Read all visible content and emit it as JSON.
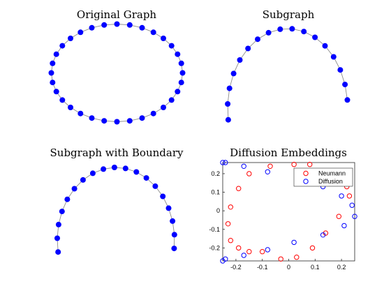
{
  "chart_data": [
    {
      "type": "graph",
      "title": "Original Graph",
      "node_count": 32,
      "closed": true,
      "node_color": "#0000ff",
      "edge_color": "#8c8c8c"
    },
    {
      "type": "graph",
      "title": "Subgraph",
      "node_count": 17,
      "closed": false,
      "node_color": "#0000ff",
      "edge_color": "#8c8c8c"
    },
    {
      "type": "graph",
      "title": "Subgraph with Boundary",
      "node_count": 19,
      "closed": false,
      "node_color": "#0000ff",
      "edge_color": "#8c8c8c"
    },
    {
      "type": "scatter",
      "title": "Diffusion Embeddings",
      "xlim": [
        -0.25,
        0.25
      ],
      "ylim": [
        -0.27,
        0.26
      ],
      "xticks": [
        -0.2,
        -0.1,
        0,
        0.1,
        0.2
      ],
      "xtick_labels": [
        "-0.2",
        "-0.1",
        "0",
        "0.1",
        "0.2"
      ],
      "yticks": [
        -0.2,
        -0.1,
        0,
        0.1,
        0.2
      ],
      "ytick_labels": [
        "-0.2",
        "-0.1",
        "0",
        "0.1",
        "0.2"
      ],
      "legend_position": "top-right",
      "series": [
        {
          "name": "Neumann",
          "color": "#ff0000",
          "x": [
            -0.07,
            -0.15,
            -0.19,
            -0.22,
            -0.23,
            -0.22,
            -0.19,
            -0.15,
            -0.1,
            -0.03,
            0.03,
            0.09,
            0.14,
            0.19,
            0.23,
            0.22,
            0.21,
            0.18,
            0.08,
            0.02
          ],
          "y": [
            0.24,
            0.2,
            0.12,
            0.02,
            -0.07,
            -0.16,
            -0.2,
            -0.22,
            -0.22,
            -0.26,
            -0.25,
            -0.2,
            -0.12,
            -0.03,
            0.08,
            0.13,
            0.17,
            0.2,
            0.25,
            0.25
          ]
        },
        {
          "name": "Diffusion",
          "color": "#0000ff",
          "x": [
            -0.25,
            -0.24,
            -0.17,
            -0.08,
            0.13,
            0.2,
            0.24,
            0.25,
            0.21,
            0.13,
            0.02,
            -0.08,
            -0.17,
            -0.24,
            -0.25
          ],
          "y": [
            0.26,
            0.26,
            0.24,
            0.21,
            0.13,
            0.08,
            0.03,
            -0.03,
            -0.08,
            -0.13,
            -0.17,
            -0.21,
            -0.24,
            -0.26,
            -0.27
          ]
        }
      ]
    }
  ]
}
